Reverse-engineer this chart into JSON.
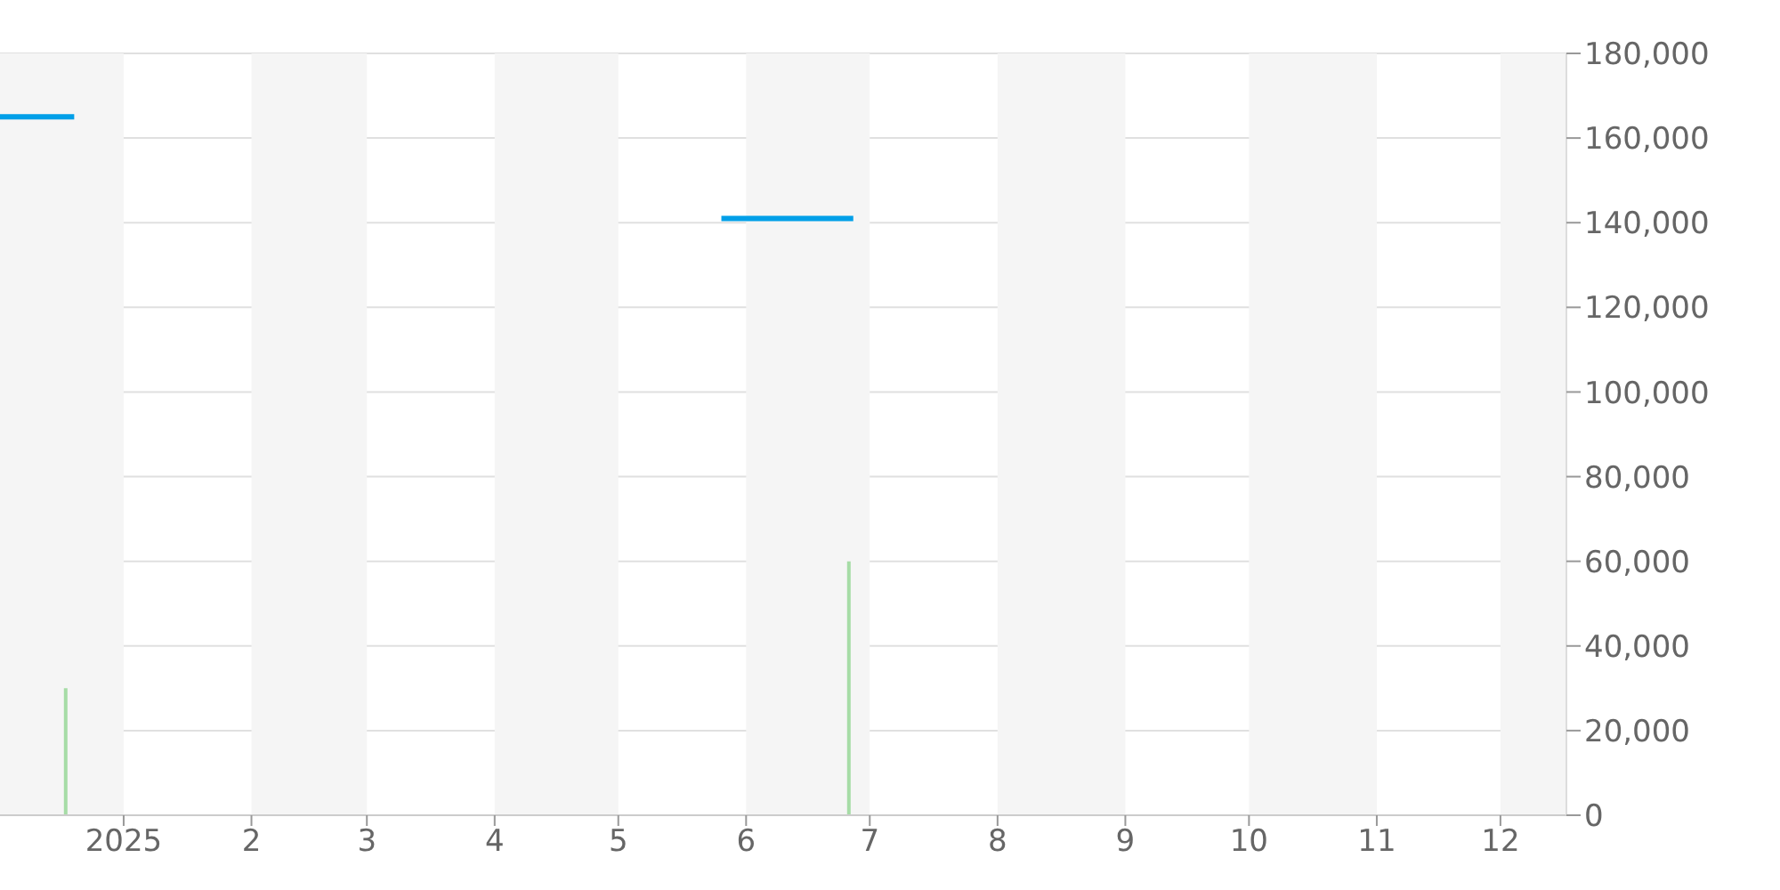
{
  "chart_data": {
    "type": "line",
    "series": [
      {
        "color": "#009fe8",
        "x": [
          "2024-12-02",
          "2024-12-20",
          "2025-03-01",
          "2025-05-26",
          "2025-06-27"
        ],
        "values": [
          165000,
          165000,
          null,
          141000,
          141000
        ]
      },
      {
        "type": "bar",
        "color": "#a6dca6",
        "x": [
          "2024-12-18",
          "2025-06-26"
        ],
        "values": [
          30000,
          60000
        ]
      }
    ],
    "xlim": [
      "2024-12-02",
      "2025-12-17"
    ],
    "xticks": [
      {
        "value": "2025-01-01",
        "label": "2025"
      },
      {
        "value": "2025-02-01",
        "label": "2"
      },
      {
        "value": "2025-03-01",
        "label": "3"
      },
      {
        "value": "2025-04-01",
        "label": "4"
      },
      {
        "value": "2025-05-01",
        "label": "5"
      },
      {
        "value": "2025-06-01",
        "label": "6"
      },
      {
        "value": "2025-07-01",
        "label": "7"
      },
      {
        "value": "2025-08-01",
        "label": "8"
      },
      {
        "value": "2025-09-01",
        "label": "9"
      },
      {
        "value": "2025-10-01",
        "label": "10"
      },
      {
        "value": "2025-11-01",
        "label": "11"
      },
      {
        "value": "2025-12-01",
        "label": "12"
      }
    ],
    "ylim": [
      0,
      180000
    ],
    "yticks": [
      {
        "value": 0,
        "label": "0"
      },
      {
        "value": 20000,
        "label": "20,000"
      },
      {
        "value": 40000,
        "label": "40,000"
      },
      {
        "value": 60000,
        "label": "60,000"
      },
      {
        "value": 80000,
        "label": "80,000"
      },
      {
        "value": 100000,
        "label": "100,000"
      },
      {
        "value": 120000,
        "label": "120,000"
      },
      {
        "value": 140000,
        "label": "140,000"
      },
      {
        "value": 160000,
        "label": "160,000"
      },
      {
        "value": 180000,
        "label": "180,000"
      }
    ],
    "bands": [
      {
        "axis": "x",
        "from": "2024-12-02",
        "to": "2025-01-01",
        "color": "#f5f5f5"
      },
      {
        "axis": "x",
        "from": "2025-02-01",
        "to": "2025-03-01",
        "color": "#f5f5f5"
      },
      {
        "axis": "x",
        "from": "2025-04-01",
        "to": "2025-05-01",
        "color": "#f5f5f5"
      },
      {
        "axis": "x",
        "from": "2025-06-01",
        "to": "2025-07-01",
        "color": "#f5f5f5"
      },
      {
        "axis": "x",
        "from": "2025-08-01",
        "to": "2025-09-01",
        "color": "#f5f5f5"
      },
      {
        "axis": "x",
        "from": "2025-10-01",
        "to": "2025-11-01",
        "color": "#f5f5f5"
      },
      {
        "axis": "x",
        "from": "2025-12-01",
        "to": "2025-12-17",
        "color": "#f5f5f5"
      }
    ],
    "grid": "y",
    "marker": "none",
    "line_style": "solid"
  }
}
